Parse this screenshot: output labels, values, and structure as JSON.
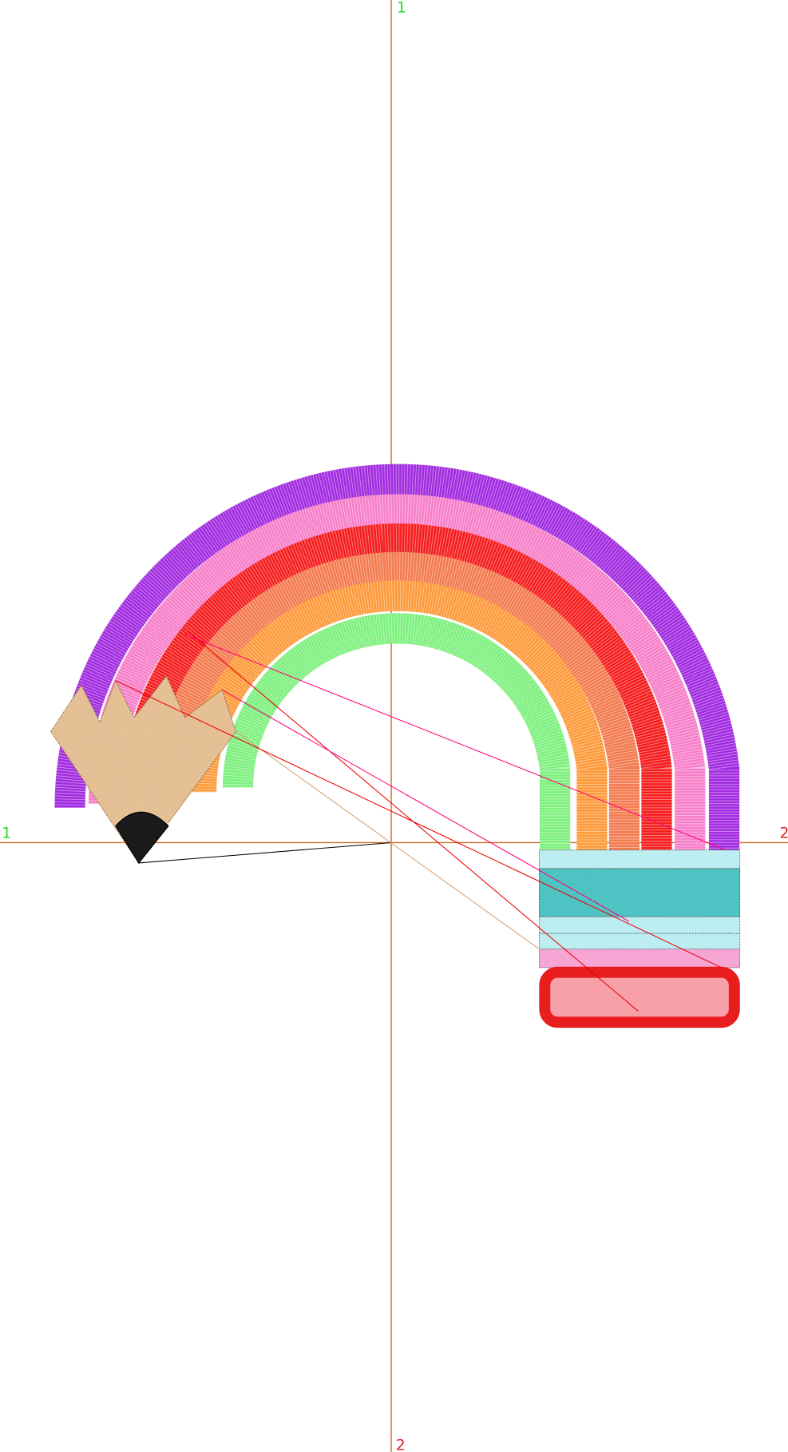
{
  "axis_labels": {
    "top": "1",
    "left": "1",
    "right": "2",
    "bottom": "2"
  }
}
